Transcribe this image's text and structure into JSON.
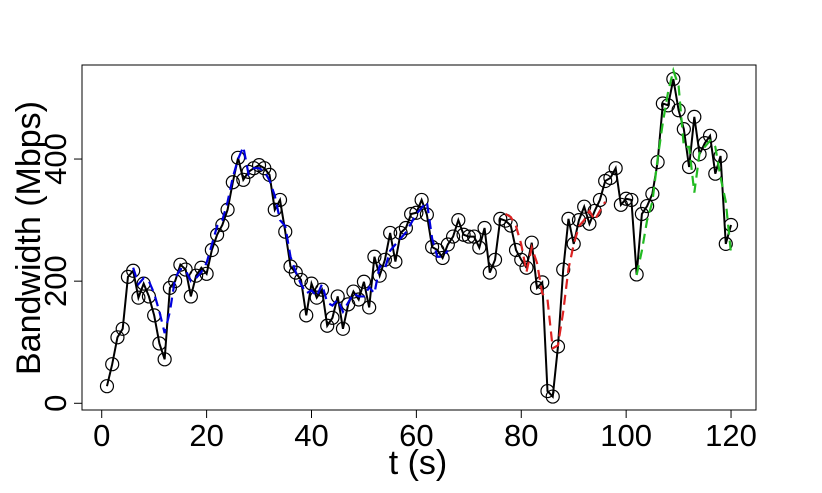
{
  "chart_data": {
    "type": "line",
    "xlabel": "t (s)",
    "ylabel": "Bandwidth (Mbps)",
    "x": [
      1,
      2,
      3,
      4,
      5,
      6,
      7,
      8,
      9,
      10,
      11,
      12,
      13,
      14,
      15,
      16,
      17,
      18,
      19,
      20,
      21,
      22,
      23,
      24,
      25,
      26,
      27,
      28,
      29,
      30,
      31,
      32,
      33,
      34,
      35,
      36,
      37,
      38,
      39,
      40,
      41,
      42,
      43,
      44,
      45,
      46,
      47,
      48,
      49,
      50,
      51,
      52,
      53,
      54,
      55,
      56,
      57,
      58,
      59,
      60,
      61,
      62,
      63,
      64,
      65,
      66,
      67,
      68,
      69,
      70,
      71,
      72,
      73,
      74,
      75,
      76,
      77,
      78,
      79,
      80,
      81,
      82,
      83,
      84,
      85,
      86,
      87,
      88,
      89,
      90,
      91,
      92,
      93,
      94,
      95,
      96,
      97,
      98,
      99,
      100,
      101,
      102,
      103,
      104,
      105,
      106,
      107,
      108,
      109,
      110,
      111,
      112,
      113,
      114,
      115,
      116,
      117,
      118,
      119,
      120
    ],
    "series": [
      {
        "color": "#000000",
        "markers": true,
        "dashed": false,
        "values": [
          28,
          64,
          108,
          122,
          207,
          217,
          173,
          196,
          175,
          144,
          98,
          72,
          189,
          200,
          227,
          219,
          175,
          209,
          222,
          212,
          251,
          276,
          292,
          317,
          362,
          402,
          366,
          379,
          385,
          390,
          385,
          374,
          317,
          333,
          281,
          224,
          214,
          202,
          144,
          196,
          173,
          186,
          127,
          140,
          175,
          122,
          162,
          183,
          170,
          199,
          157,
          240,
          209,
          235,
          279,
          232,
          279,
          287,
          310,
          312,
          333,
          309,
          256,
          251,
          238,
          260,
          273,
          300,
          276,
          273,
          273,
          255,
          287,
          214,
          235,
          302,
          299,
          291,
          251,
          235,
          222,
          263,
          189,
          198,
          20,
          11,
          93,
          219,
          302,
          261,
          300,
          322,
          294,
          315,
          333,
          364,
          369,
          385,
          325,
          335,
          333,
          211,
          310,
          323,
          343,
          395,
          491,
          488,
          531,
          480,
          449,
          387,
          469,
          408,
          426,
          438,
          376,
          405,
          261,
          292
        ]
      },
      {
        "color": "#0000dd",
        "markers": false,
        "dashed": true,
        "values": [
          null,
          null,
          null,
          null,
          null,
          222,
          195,
          205,
          200,
          180,
          150,
          115,
          150,
          205,
          220,
          218,
          200,
          205,
          215,
          230,
          260,
          290,
          300,
          330,
          370,
          400,
          420,
          375,
          385,
          385,
          380,
          365,
          340,
          300,
          290,
          240,
          215,
          195,
          180,
          185,
          175,
          195,
          165,
          160,
          170,
          150,
          165,
          180,
          175,
          175,
          190,
          180,
          225,
          220,
          250,
          260,
          270,
          280,
          295,
          310,
          320,
          330,
          270,
          240,
          240,
          250,
          null,
          null,
          null,
          null,
          null,
          null,
          null,
          null,
          null,
          null,
          null,
          null,
          null,
          null,
          null,
          null,
          null,
          null,
          null,
          null,
          null,
          null,
          null,
          null,
          null,
          null,
          null,
          null,
          null,
          null,
          null,
          null,
          null,
          null,
          null,
          null,
          null,
          null,
          null,
          null,
          null,
          null,
          null,
          null,
          null,
          null,
          null,
          null,
          null,
          null,
          null,
          null,
          null,
          null
        ]
      },
      {
        "color": "#dd2222",
        "markers": false,
        "dashed": true,
        "values": [
          null,
          null,
          null,
          null,
          null,
          null,
          null,
          null,
          null,
          null,
          null,
          null,
          null,
          null,
          null,
          null,
          null,
          null,
          null,
          null,
          null,
          null,
          null,
          null,
          null,
          null,
          null,
          null,
          null,
          null,
          null,
          null,
          null,
          null,
          null,
          null,
          null,
          null,
          null,
          null,
          null,
          null,
          null,
          null,
          null,
          null,
          null,
          null,
          null,
          null,
          null,
          null,
          null,
          null,
          null,
          null,
          null,
          null,
          null,
          null,
          null,
          null,
          null,
          null,
          null,
          null,
          null,
          null,
          null,
          null,
          null,
          null,
          null,
          null,
          null,
          null,
          310,
          305,
          290,
          260,
          215,
          255,
          230,
          180,
          170,
          90,
          95,
          150,
          220,
          260,
          290,
          300,
          315,
          300,
          315,
          330,
          null,
          null,
          null,
          null,
          null,
          null,
          null,
          null,
          null,
          null,
          null,
          null,
          null,
          null,
          null,
          null,
          null,
          null,
          null,
          null,
          null,
          null,
          null,
          null
        ]
      },
      {
        "color": "#22bb22",
        "markers": false,
        "dashed": true,
        "values": [
          null,
          null,
          null,
          null,
          null,
          null,
          null,
          null,
          null,
          null,
          null,
          null,
          null,
          null,
          null,
          null,
          null,
          null,
          null,
          null,
          null,
          null,
          null,
          null,
          null,
          null,
          null,
          null,
          null,
          null,
          null,
          null,
          null,
          null,
          null,
          null,
          null,
          null,
          null,
          null,
          null,
          null,
          null,
          null,
          null,
          null,
          null,
          null,
          null,
          null,
          null,
          null,
          null,
          null,
          null,
          null,
          null,
          null,
          null,
          null,
          null,
          null,
          null,
          null,
          null,
          null,
          null,
          null,
          null,
          null,
          null,
          null,
          null,
          null,
          null,
          null,
          null,
          null,
          null,
          null,
          null,
          null,
          null,
          null,
          null,
          null,
          null,
          null,
          null,
          null,
          null,
          null,
          null,
          null,
          null,
          null,
          null,
          null,
          null,
          null,
          null,
          210,
          250,
          300,
          330,
          400,
          460,
          510,
          545,
          520,
          420,
          420,
          345,
          410,
          420,
          430,
          420,
          370,
          330,
          245
        ]
      }
    ],
    "xlim": [
      -3.76,
      124.76
    ],
    "ylim": [
      -11,
      554
    ],
    "xticks": [
      0,
      20,
      40,
      60,
      80,
      100,
      120
    ],
    "yticks": [
      0,
      200,
      400
    ]
  }
}
